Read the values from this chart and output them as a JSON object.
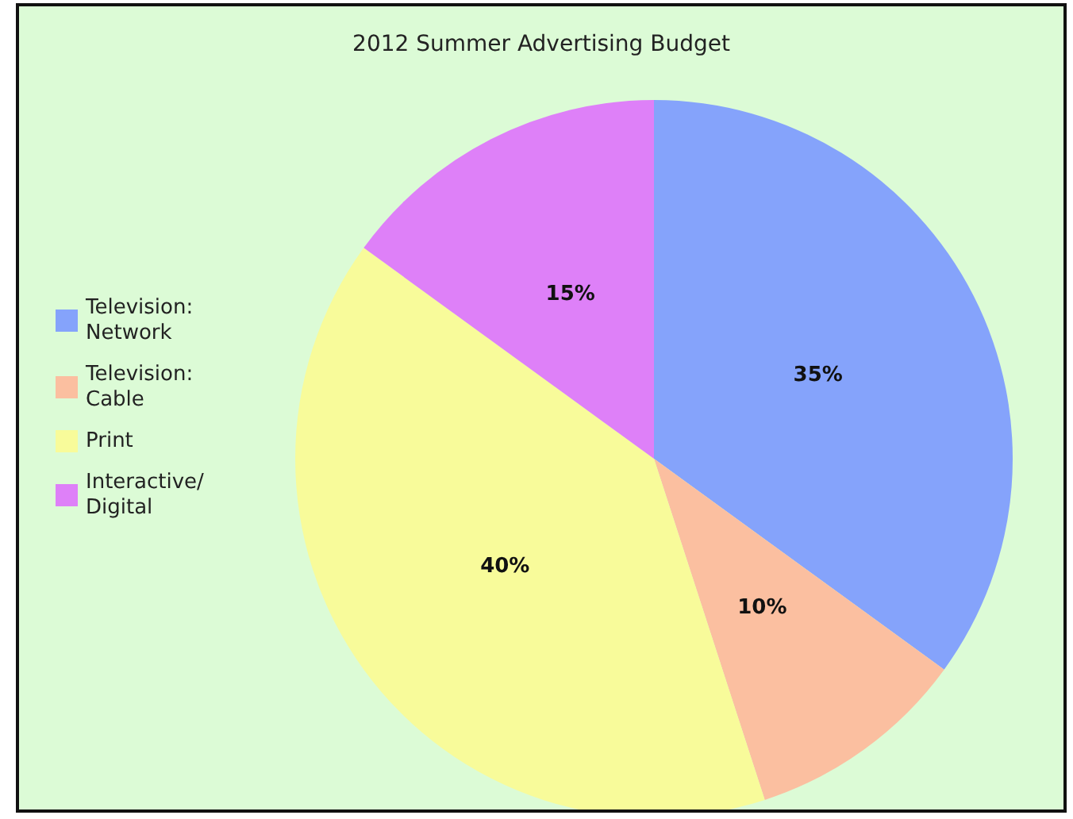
{
  "chart_data": {
    "type": "pie",
    "title": "2012 Summer Advertising Budget",
    "categories": [
      "Television: Network",
      "Television: Cable",
      "Print",
      "Interactive/ Digital"
    ],
    "values": [
      35,
      10,
      40,
      15
    ],
    "colors": [
      "#85a3fb",
      "#fbbfa0",
      "#f8fb9a",
      "#de80f8"
    ],
    "value_labels": [
      "35%",
      "10%",
      "40%",
      "15%"
    ],
    "legend": "left"
  }
}
